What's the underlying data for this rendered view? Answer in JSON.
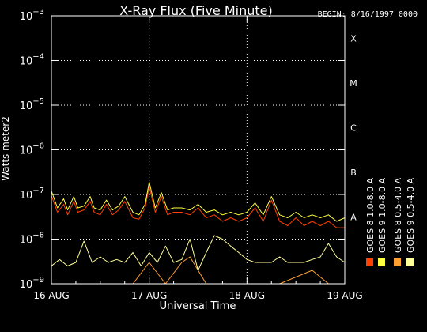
{
  "chart_data": {
    "type": "line",
    "title": "X-Ray Flux (Five Minute)",
    "begin_label": "BEGIN: 8/16/1997 0000",
    "xlabel": "Universal Time",
    "ylabel": "Watts meter2",
    "x_ticks": [
      "16 AUG",
      "17 AUG",
      "18 AUG",
      "19 AUG"
    ],
    "xlim": [
      "1997-08-16T00:00",
      "1997-08-19T00:00"
    ],
    "yscale": "log",
    "ylim": [
      1e-09,
      0.001
    ],
    "y_ticks": [
      {
        "value": 1e-09,
        "base": "10",
        "exp": "−9"
      },
      {
        "value": 1e-08,
        "base": "10",
        "exp": "−8"
      },
      {
        "value": 1e-07,
        "base": "10",
        "exp": "−7"
      },
      {
        "value": 1e-06,
        "base": "10",
        "exp": "−6"
      },
      {
        "value": 1e-05,
        "base": "10",
        "exp": "−5"
      },
      {
        "value": 0.0001,
        "base": "10",
        "exp": "−4"
      },
      {
        "value": 0.001,
        "base": "10",
        "exp": "−3"
      }
    ],
    "flare_classes": [
      {
        "label": "A",
        "value": 1e-08
      },
      {
        "label": "B",
        "value": 1e-07
      },
      {
        "label": "C",
        "value": 1e-06
      },
      {
        "label": "M",
        "value": 1e-05
      },
      {
        "label": "X",
        "value": 0.0001
      }
    ],
    "grid": true,
    "legend_position": "right, vertical",
    "legend": [
      {
        "label": "GOES 8 1.0-8.0 A",
        "color": "#ff4000"
      },
      {
        "label": "GOES 8 0.5-4.0 A",
        "color": "#ffa030"
      },
      {
        "label": "GOES 9 1.0-8.0 A",
        "color": "#ffff40"
      },
      {
        "label": "GOES 9 0.5-4.0 A",
        "color": "#ffff99"
      }
    ],
    "series": [
      {
        "name": "GOES 8 1.0-8.0 A",
        "color": "#ff4000",
        "x": [
          "1997-08-16T00:00",
          "1997-08-16T01:30",
          "1997-08-16T03:00",
          "1997-08-16T04:00",
          "1997-08-16T05:30",
          "1997-08-16T06:30",
          "1997-08-16T08:00",
          "1997-08-16T09:30",
          "1997-08-16T10:30",
          "1997-08-16T12:00",
          "1997-08-16T13:30",
          "1997-08-16T15:00",
          "1997-08-16T16:30",
          "1997-08-16T18:00",
          "1997-08-16T20:00",
          "1997-08-16T21:30",
          "1997-08-16T23:00",
          "1997-08-17T00:00",
          "1997-08-17T01:30",
          "1997-08-17T03:00",
          "1997-08-17T04:30",
          "1997-08-17T06:00",
          "1997-08-17T08:00",
          "1997-08-17T10:00",
          "1997-08-17T12:00",
          "1997-08-17T14:00",
          "1997-08-17T16:00",
          "1997-08-17T18:00",
          "1997-08-17T20:00",
          "1997-08-17T22:00",
          "1997-08-18T00:00",
          "1997-08-18T02:00",
          "1997-08-18T04:00",
          "1997-08-18T06:00",
          "1997-08-18T08:00",
          "1997-08-18T10:00",
          "1997-08-18T12:00",
          "1997-08-18T14:00",
          "1997-08-18T16:00",
          "1997-08-18T18:00",
          "1997-08-18T20:00",
          "1997-08-18T22:00",
          "1997-08-19T00:00"
        ],
        "y": [
          9.5e-08,
          4e-08,
          6e-08,
          3.5e-08,
          7e-08,
          4e-08,
          4.5e-08,
          7e-08,
          4e-08,
          3.5e-08,
          6e-08,
          3.5e-08,
          4.5e-08,
          7e-08,
          3e-08,
          2.8e-08,
          5e-08,
          1.5e-07,
          4e-08,
          9e-08,
          3.5e-08,
          4e-08,
          4e-08,
          3.5e-08,
          5e-08,
          3e-08,
          3.5e-08,
          2.5e-08,
          3e-08,
          2.5e-08,
          3e-08,
          5e-08,
          2.5e-08,
          7.5e-08,
          2.5e-08,
          2e-08,
          3e-08,
          2e-08,
          2.5e-08,
          2e-08,
          2.5e-08,
          1.8e-08,
          1.8e-08
        ]
      },
      {
        "name": "GOES 8 0.5-4.0 A",
        "color": "#ffa030",
        "x": [
          "1997-08-16T00:00",
          "1997-08-16T05:00",
          "1997-08-16T10:00",
          "1997-08-16T16:00",
          "1997-08-16T20:00",
          "1997-08-17T00:00",
          "1997-08-17T04:00",
          "1997-08-17T08:00",
          "1997-08-17T10:00",
          "1997-08-17T12:00",
          "1997-08-17T14:00",
          "1997-08-17T18:00",
          "1997-08-18T00:00",
          "1997-08-18T08:00",
          "1997-08-18T16:00",
          "1997-08-18T20:00",
          "1997-08-19T00:00"
        ],
        "y": [
          1e-09,
          1e-09,
          1e-09,
          1e-09,
          1e-09,
          3e-09,
          1e-09,
          3e-09,
          4e-09,
          2e-09,
          1e-09,
          1e-09,
          1e-09,
          1e-09,
          2e-09,
          1e-09,
          1e-09
        ]
      },
      {
        "name": "GOES 9 1.0-8.0 A",
        "color": "#ffff40",
        "x": [
          "1997-08-16T00:00",
          "1997-08-16T01:30",
          "1997-08-16T03:00",
          "1997-08-16T04:00",
          "1997-08-16T05:30",
          "1997-08-16T06:30",
          "1997-08-16T08:00",
          "1997-08-16T09:30",
          "1997-08-16T10:30",
          "1997-08-16T12:00",
          "1997-08-16T13:30",
          "1997-08-16T15:00",
          "1997-08-16T16:30",
          "1997-08-16T18:00",
          "1997-08-16T20:00",
          "1997-08-16T21:30",
          "1997-08-16T23:00",
          "1997-08-17T00:00",
          "1997-08-17T01:30",
          "1997-08-17T03:00",
          "1997-08-17T04:30",
          "1997-08-17T06:00",
          "1997-08-17T08:00",
          "1997-08-17T10:00",
          "1997-08-17T12:00",
          "1997-08-17T14:00",
          "1997-08-17T16:00",
          "1997-08-17T18:00",
          "1997-08-17T20:00",
          "1997-08-17T22:00",
          "1997-08-18T00:00",
          "1997-08-18T02:00",
          "1997-08-18T04:00",
          "1997-08-18T06:00",
          "1997-08-18T08:00",
          "1997-08-18T10:00",
          "1997-08-18T12:00",
          "1997-08-18T14:00",
          "1997-08-18T16:00",
          "1997-08-18T18:00",
          "1997-08-18T20:00",
          "1997-08-18T22:00",
          "1997-08-19T00:00"
        ],
        "y": [
          1.2e-07,
          5e-08,
          8e-08,
          4.5e-08,
          9e-08,
          5e-08,
          5.5e-08,
          9e-08,
          5e-08,
          4.5e-08,
          7.5e-08,
          4.5e-08,
          5.5e-08,
          9e-08,
          4e-08,
          3.5e-08,
          6e-08,
          1.9e-07,
          5e-08,
          1.1e-07,
          4.5e-08,
          5e-08,
          5e-08,
          4.5e-08,
          6e-08,
          4e-08,
          4.5e-08,
          3.5e-08,
          4e-08,
          3.5e-08,
          4e-08,
          6.5e-08,
          3.5e-08,
          9e-08,
          3.5e-08,
          3e-08,
          4e-08,
          3e-08,
          3.5e-08,
          3e-08,
          3.5e-08,
          2.5e-08,
          3e-08
        ]
      },
      {
        "name": "GOES 9 0.5-4.0 A",
        "color": "#ffff99",
        "x": [
          "1997-08-16T00:00",
          "1997-08-16T02:00",
          "1997-08-16T04:00",
          "1997-08-16T06:00",
          "1997-08-16T08:00",
          "1997-08-16T10:00",
          "1997-08-16T12:00",
          "1997-08-16T14:00",
          "1997-08-16T16:00",
          "1997-08-16T18:00",
          "1997-08-16T20:00",
          "1997-08-16T22:00",
          "1997-08-17T00:00",
          "1997-08-17T02:00",
          "1997-08-17T04:00",
          "1997-08-17T06:00",
          "1997-08-17T08:00",
          "1997-08-17T10:00",
          "1997-08-17T12:00",
          "1997-08-17T14:00",
          "1997-08-17T16:00",
          "1997-08-17T18:00",
          "1997-08-17T20:00",
          "1997-08-17T22:00",
          "1997-08-18T00:00",
          "1997-08-18T02:00",
          "1997-08-18T04:00",
          "1997-08-18T06:00",
          "1997-08-18T08:00",
          "1997-08-18T10:00",
          "1997-08-18T12:00",
          "1997-08-18T14:00",
          "1997-08-18T16:00",
          "1997-08-18T18:00",
          "1997-08-18T20:00",
          "1997-08-18T22:00",
          "1997-08-19T00:00"
        ],
        "y": [
          2.5e-09,
          3.5e-09,
          2.5e-09,
          3e-09,
          9e-09,
          3e-09,
          4e-09,
          3e-09,
          3.5e-09,
          3e-09,
          5e-09,
          2.5e-09,
          5e-09,
          3e-09,
          7e-09,
          3e-09,
          3.5e-09,
          1e-08,
          2e-09,
          5e-09,
          1.2e-08,
          1e-08,
          7e-09,
          5e-09,
          3.5e-09,
          3e-09,
          3e-09,
          3e-09,
          4e-09,
          3e-09,
          3e-09,
          3e-09,
          3.5e-09,
          4e-09,
          8e-09,
          4e-09,
          3e-09
        ]
      }
    ]
  }
}
